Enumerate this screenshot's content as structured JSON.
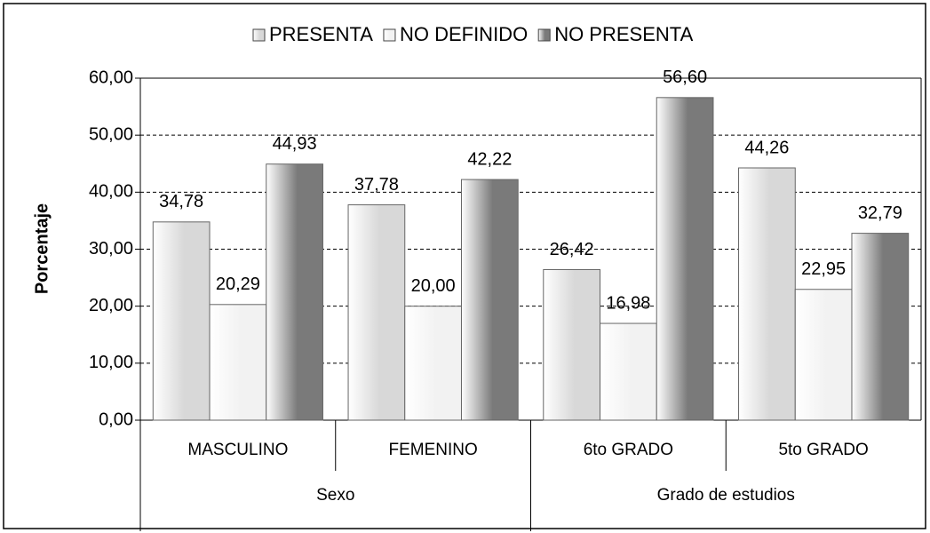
{
  "chart_data": {
    "type": "bar",
    "y_label": "Porcentaje",
    "categories": [
      "MASCULINO",
      "FEMENINO",
      "6to GRADO",
      "5to GRADO"
    ],
    "groups": [
      "Sexo",
      "Grado de estudios"
    ],
    "series": [
      {
        "name": "PRESENTA",
        "color": "#d8d8d8",
        "values": [
          34.78,
          37.78,
          26.42,
          44.26
        ],
        "value_labels": [
          "34,78",
          "37,78",
          "26,42",
          "44,26"
        ]
      },
      {
        "name": "NO DEFINIDO",
        "color": "#f2f2f2",
        "values": [
          20.29,
          20.0,
          16.98,
          22.95
        ],
        "value_labels": [
          "20,29",
          "20,00",
          "16,98",
          "22,95"
        ]
      },
      {
        "name": "NO PRESENTA",
        "color": "#7a7a7a",
        "values": [
          44.93,
          42.22,
          56.6,
          32.79
        ],
        "value_labels": [
          "44,93",
          "42,22",
          "56,60",
          "32,79"
        ]
      }
    ],
    "ylim": [
      0,
      60
    ],
    "yticks": [
      {
        "value": 0,
        "label": "0,00"
      },
      {
        "value": 10,
        "label": "10,00"
      },
      {
        "value": 20,
        "label": "20,00"
      },
      {
        "value": 30,
        "label": "30,00"
      },
      {
        "value": 40,
        "label": "40,00"
      },
      {
        "value": 50,
        "label": "50,00"
      },
      {
        "value": 60,
        "label": "60,00"
      }
    ],
    "grid": true,
    "legend": "top"
  }
}
